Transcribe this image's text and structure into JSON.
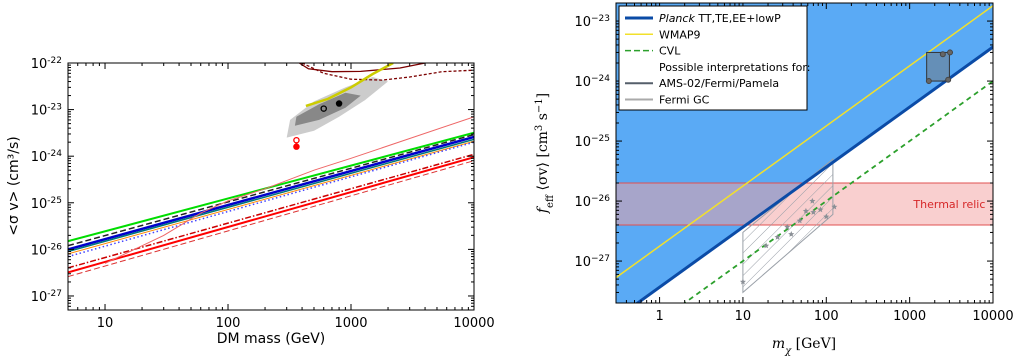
{
  "chart_data": [
    {
      "type": "line",
      "xlabel": "DM mass (GeV)",
      "ylabel": "<σ v> (cm³/s)",
      "xscale": "log",
      "yscale": "log",
      "xlim": [
        5,
        10000
      ],
      "ylim": [
        5e-28,
        1e-22
      ],
      "xticks": [
        {
          "v": 10,
          "label": "10"
        },
        {
          "v": 100,
          "label": "100"
        },
        {
          "v": 1000,
          "label": "1000"
        },
        {
          "v": 10000,
          "label": "10000"
        }
      ],
      "yticks": [
        {
          "v": 1e-27,
          "base": "10",
          "exp": "-27"
        },
        {
          "v": 1e-26,
          "base": "10",
          "exp": "-26"
        },
        {
          "v": 1e-25,
          "base": "10",
          "exp": "-25"
        },
        {
          "v": 1e-24,
          "base": "10",
          "exp": "-24"
        },
        {
          "v": 1e-23,
          "base": "10",
          "exp": "-23"
        },
        {
          "v": 1e-22,
          "base": "10",
          "exp": "-22"
        }
      ],
      "grid": false,
      "series": [
        {
          "color": "#00dd00",
          "style": "solid",
          "width": 2,
          "x": [
            5,
            10000
          ],
          "y": [
            1.5e-26,
            3.2e-24
          ]
        },
        {
          "color": "#222222",
          "style": "dashed",
          "width": 1.5,
          "x": [
            5,
            10000
          ],
          "y": [
            1.2e-26,
            2.9e-24
          ]
        },
        {
          "color": "#0000cc",
          "style": "solid",
          "width": 2.5,
          "x": [
            5,
            10000
          ],
          "y": [
            1e-26,
            2.6e-24
          ]
        },
        {
          "color": "#007777",
          "style": "solid",
          "width": 1.5,
          "x": [
            5,
            10000
          ],
          "y": [
            9e-27,
            2.3e-24
          ]
        },
        {
          "color": "#ff8800",
          "style": "solid",
          "width": 1,
          "x": [
            5,
            10000
          ],
          "y": [
            8e-27,
            2.1e-24
          ]
        },
        {
          "color": "#4444ff",
          "style": "dotted",
          "width": 1.5,
          "x": [
            5,
            10000
          ],
          "y": [
            7e-27,
            2e-24
          ]
        },
        {
          "color": "#cc0000",
          "style": "dashdot",
          "width": 1.5,
          "x": [
            5,
            10000
          ],
          "y": [
            4e-27,
            1.1e-24
          ]
        },
        {
          "color": "#ff0000",
          "style": "solid",
          "width": 2,
          "x": [
            5,
            10000
          ],
          "y": [
            3.2e-27,
            9.5e-25
          ]
        },
        {
          "color": "#ee6666",
          "style": "solid",
          "width": 1,
          "x": [
            10,
            30,
            60,
            100,
            200,
            500,
            1000,
            10000
          ],
          "y": [
            5e-27,
            2e-26,
            6e-26,
            1.1e-25,
            2e-25,
            5e-25,
            9e-25,
            7e-24
          ]
        },
        {
          "color": "#dd3333",
          "style": "dashed",
          "width": 1,
          "x": [
            5,
            10000
          ],
          "y": [
            2.6e-27,
            8e-25
          ]
        },
        {
          "color": "#cccc00",
          "style": "solid",
          "width": 2.5,
          "x": [
            430,
            650,
            1000,
            1500,
            2200
          ],
          "y": [
            1.2e-23,
            1.7e-23,
            3e-23,
            5.8e-23,
            1e-22
          ]
        }
      ],
      "contours_outer": {
        "color": "#cccccc",
        "x": [
          300,
          500,
          800,
          1300,
          2000,
          1500,
          900,
          500,
          320
        ],
        "y": [
          2.5e-24,
          3.5e-24,
          7e-24,
          1.6e-23,
          4e-23,
          5e-23,
          3e-23,
          1.5e-23,
          6e-24
        ]
      },
      "contours_inner": {
        "color": "#888888",
        "x": [
          350,
          550,
          900,
          1200,
          900,
          550,
          360
        ],
        "y": [
          4.5e-24,
          6e-24,
          1.1e-23,
          2e-23,
          2.3e-23,
          1.3e-23,
          7e-24
        ]
      },
      "top_contours": {
        "color": "#7b0000",
        "x": [
          [
            380,
            450,
            700,
            1200,
            2500,
            4000
          ],
          [
            400,
            600,
            1000,
            1800,
            3000,
            5500,
            10000
          ]
        ],
        "y": [
          [
            1e-22,
            7.5e-23,
            6.5e-23,
            6.6e-23,
            7.8e-23,
            1e-22
          ],
          [
            1e-22,
            6e-23,
            4.5e-23,
            4.3e-23,
            5e-23,
            6.5e-23,
            7e-23
          ]
        ]
      },
      "points": [
        {
          "x": 600,
          "y": 1.05e-23,
          "fill": "none",
          "stroke": "#000000"
        },
        {
          "x": 800,
          "y": 1.35e-23,
          "fill": "#000000",
          "stroke": "#000000"
        },
        {
          "x": 360,
          "y": 2.2e-24,
          "fill": "none",
          "stroke": "#ff0000"
        },
        {
          "x": 360,
          "y": 1.6e-24,
          "fill": "#ff0000",
          "stroke": "#ff0000"
        }
      ]
    },
    {
      "type": "line",
      "xlabel_sym": "m",
      "xlabel_sub": "χ",
      "xlabel_unit": " [GeV]",
      "ylabel_sym": "f",
      "ylabel_sub": "eff",
      "ylabel_mid": " ⟨σv⟩  [cm",
      "ylabel_sup1": "3",
      "ylabel_s": " s",
      "ylabel_sup2": "−1",
      "ylabel_end": "]",
      "xscale": "log",
      "yscale": "log",
      "xlim": [
        0.3,
        10000
      ],
      "ylim": [
        2e-28,
        2e-23
      ],
      "xticks": [
        {
          "v": 1,
          "label": "1"
        },
        {
          "v": 10,
          "label": "10"
        },
        {
          "v": 100,
          "label": "100"
        },
        {
          "v": 1000,
          "label": "1000"
        },
        {
          "v": 10000,
          "label": "10000"
        }
      ],
      "yticks": [
        {
          "v": 1e-27,
          "base": "10",
          "exp": "−27"
        },
        {
          "v": 1e-26,
          "base": "10",
          "exp": "−26"
        },
        {
          "v": 1e-25,
          "base": "10",
          "exp": "−25"
        },
        {
          "v": 1e-24,
          "base": "10",
          "exp": "−24"
        },
        {
          "v": 1e-23,
          "base": "10",
          "exp": "−23"
        }
      ],
      "grid": false,
      "excluded_color": "#5aaaf5",
      "planck_line": {
        "x": [
          0.3,
          10000
        ],
        "y": [
          1.1e-28,
          3.7e-24
        ],
        "color": "#0b4ba6"
      },
      "wmap_line": {
        "x": [
          0.3,
          10000
        ],
        "y": [
          5.3e-28,
          1.8e-23
        ],
        "color": "#f2e02b"
      },
      "cvl_line": {
        "x": [
          0.3,
          10000
        ],
        "y": [
          3e-29,
          1e-24
        ],
        "color": "#2ca02c"
      },
      "thermal_band": {
        "ymin": 4e-27,
        "ymax": 2e-26,
        "color": "#f4a0a0",
        "edge": "#e05050",
        "label": "Thermal relic",
        "label_x": 3000,
        "label_y": 9e-27
      },
      "ams_box": {
        "x": [
          1600,
          3000
        ],
        "y": [
          1e-24,
          3e-24
        ]
      },
      "ams_points": [
        {
          "x": 1700,
          "y": 1e-24
        },
        {
          "x": 2900,
          "y": 1.05e-24
        },
        {
          "x": 2500,
          "y": 2.8e-24
        },
        {
          "x": 3050,
          "y": 3e-24
        }
      ],
      "fermi_poly": {
        "x": [
          10,
          10,
          120,
          120
        ],
        "y": [
          3e-28,
          3e-27,
          5e-26,
          6e-27
        ]
      },
      "fermi_points": [
        {
          "x": 10,
          "y": 4.5e-28
        },
        {
          "x": 19,
          "y": 1.8e-27
        },
        {
          "x": 26,
          "y": 2.5e-27
        },
        {
          "x": 38,
          "y": 2.8e-27
        },
        {
          "x": 34,
          "y": 3.7e-27
        },
        {
          "x": 48,
          "y": 4.7e-27
        },
        {
          "x": 57,
          "y": 6.8e-27
        },
        {
          "x": 70,
          "y": 6.5e-27
        },
        {
          "x": 85,
          "y": 7.2e-27
        },
        {
          "x": 100,
          "y": 5.5e-27
        },
        {
          "x": 125,
          "y": 8e-27
        },
        {
          "x": 68,
          "y": 1e-26
        }
      ],
      "legend": {
        "position": "top-left",
        "entries": [
          {
            "label_italic": "Planck",
            "label": " TT,TE,EE+lowP",
            "color": "#0b4ba6",
            "style": "solid",
            "width": 3
          },
          {
            "label_italic": "",
            "label": "WMAP9",
            "color": "#f2e02b",
            "style": "solid",
            "width": 1.5
          },
          {
            "label_italic": "",
            "label": "CVL",
            "color": "#2ca02c",
            "style": "dashed",
            "width": 1.5
          },
          {
            "label_italic": "",
            "label": "Possible interpretations for:",
            "color": "",
            "style": "none",
            "width": 0
          },
          {
            "label_italic": "",
            "label": "AMS-02/Fermi/Pamela",
            "color": "#555f6a",
            "style": "solid",
            "width": 2
          },
          {
            "label_italic": "",
            "label": "Fermi GC",
            "color": "#aaaaaa",
            "style": "solid",
            "width": 2
          }
        ]
      }
    }
  ]
}
